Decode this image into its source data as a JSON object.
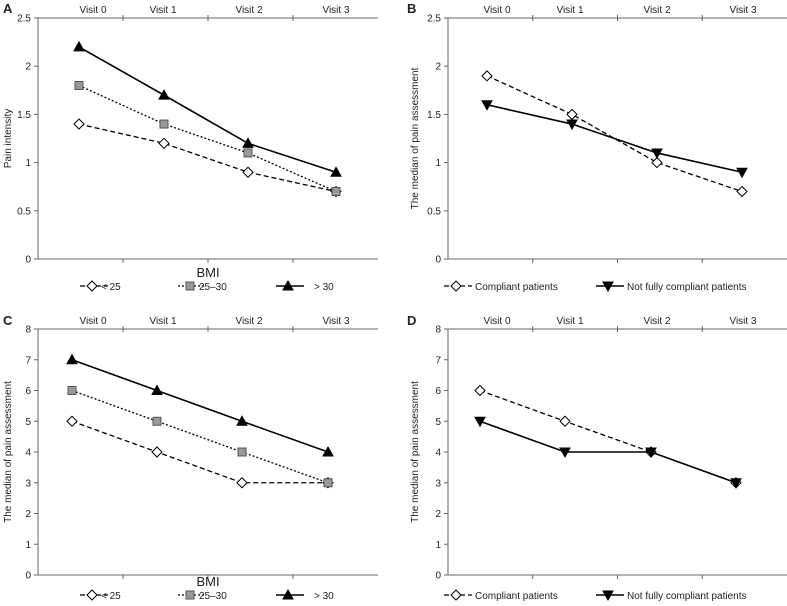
{
  "chart_data": [
    {
      "panel": "A",
      "type": "line",
      "categories": [
        "Visit 0",
        "Visit 1",
        "Visit 2",
        "Visit 3"
      ],
      "ylabel": "Pain intensity",
      "xlabel": "BMI",
      "ylim": [
        0,
        2.5
      ],
      "yticks": [
        "0",
        "0.5",
        "1",
        "1.5",
        "2",
        "2.5"
      ],
      "legend_position": "bottom",
      "series": [
        {
          "name": "< 25",
          "marker": "diamond",
          "style": "dashed",
          "values": [
            1.4,
            1.2,
            0.9,
            0.7
          ]
        },
        {
          "name": "25–30",
          "marker": "square",
          "style": "dotted",
          "values": [
            1.8,
            1.4,
            1.1,
            0.7
          ]
        },
        {
          "name": "> 30",
          "marker": "triangle",
          "style": "solid",
          "values": [
            2.2,
            1.7,
            1.2,
            0.9
          ]
        }
      ]
    },
    {
      "panel": "B",
      "type": "line",
      "categories": [
        "Visit 0",
        "Visit 1",
        "Visit 2",
        "Visit 3"
      ],
      "ylabel": "The median of pain assessment",
      "xlabel": "",
      "ylim": [
        0,
        2.5
      ],
      "yticks": [
        "0",
        "0.5",
        "1",
        "1.5",
        "2",
        "2.5"
      ],
      "legend_position": "bottom",
      "series": [
        {
          "name": "Compliant patients",
          "marker": "diamond",
          "style": "dashed",
          "values": [
            1.9,
            1.5,
            1.0,
            0.7
          ]
        },
        {
          "name": "Not fully compliant patients",
          "marker": "triangle-down",
          "style": "solid",
          "values": [
            1.6,
            1.4,
            1.1,
            0.9
          ]
        }
      ]
    },
    {
      "panel": "C",
      "type": "line",
      "categories": [
        "Visit 0",
        "Visit 1",
        "Visit 2",
        "Visit 3"
      ],
      "ylabel": "The median of pain assessment",
      "xlabel": "BMI",
      "ylim": [
        0,
        8
      ],
      "yticks": [
        "0",
        "1",
        "2",
        "3",
        "4",
        "5",
        "6",
        "7",
        "8"
      ],
      "legend_position": "bottom",
      "series": [
        {
          "name": "< 25",
          "marker": "diamond",
          "style": "dashed",
          "values": [
            5,
            4,
            3,
            3
          ]
        },
        {
          "name": "25–30",
          "marker": "square",
          "style": "dotted",
          "values": [
            6,
            5,
            4,
            3
          ]
        },
        {
          "name": "> 30",
          "marker": "triangle",
          "style": "solid",
          "values": [
            7,
            6,
            5,
            4
          ]
        }
      ]
    },
    {
      "panel": "D",
      "type": "line",
      "categories": [
        "Visit 0",
        "Visit 1",
        "Visit 2",
        "Visit 3"
      ],
      "ylabel": "The median of pain assessment",
      "xlabel": "",
      "ylim": [
        0,
        8
      ],
      "yticks": [
        "0",
        "1",
        "2",
        "3",
        "4",
        "5",
        "6",
        "7",
        "8"
      ],
      "legend_position": "bottom",
      "series": [
        {
          "name": "Compliant patients",
          "marker": "diamond",
          "style": "dashed",
          "values": [
            6,
            5,
            4,
            3
          ]
        },
        {
          "name": "Not fully compliant patients",
          "marker": "triangle-down",
          "style": "solid",
          "values": [
            5,
            4,
            4,
            3
          ]
        }
      ]
    }
  ]
}
